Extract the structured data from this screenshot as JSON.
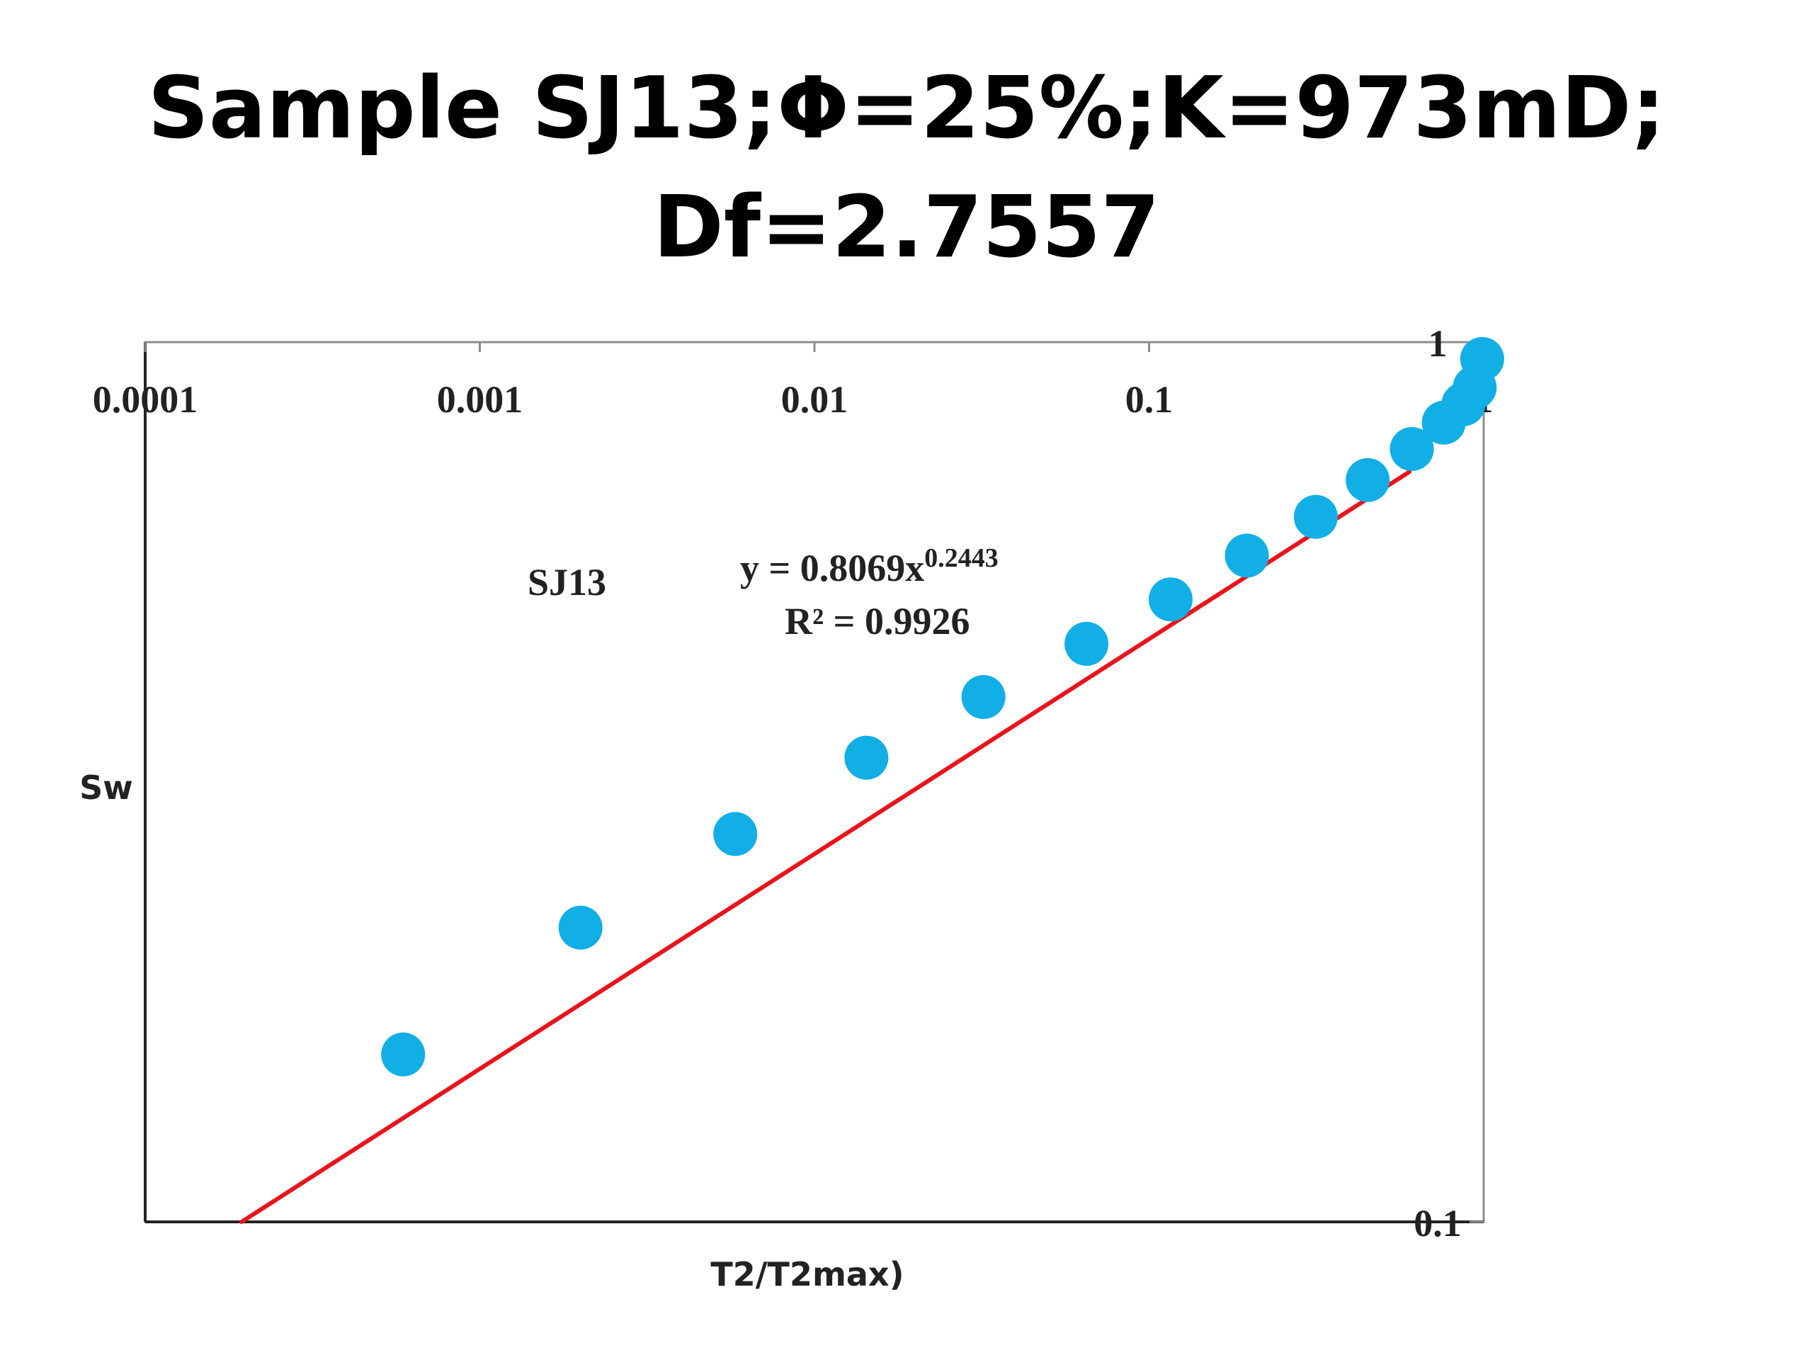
{
  "chart_data": {
    "type": "scatter",
    "title_line1": "Sample SJ13;Φ=25%;K=973mD;",
    "title_line2": "Df=2.7557",
    "xlabel": "T2/T2max)",
    "ylabel": "Sw",
    "x_scale": "log",
    "y_scale": "log",
    "xlim": [
      0.0001,
      1
    ],
    "ylim": [
      0.1,
      1
    ],
    "x_ticks": [
      "0.0001",
      "0.001",
      "0.01",
      "0.1",
      "1"
    ],
    "y_ticks": [
      "1",
      "0.1"
    ],
    "grid": false,
    "series": [
      {
        "name": "SJ13",
        "color": "#12aee6",
        "x": [
          0.00059,
          0.002,
          0.0058,
          0.0143,
          0.032,
          0.065,
          0.116,
          0.196,
          0.315,
          0.45,
          0.61,
          0.76,
          0.87,
          0.94,
          0.99
        ],
        "y": [
          0.155,
          0.216,
          0.276,
          0.337,
          0.395,
          0.454,
          0.51,
          0.572,
          0.633,
          0.697,
          0.756,
          0.81,
          0.85,
          0.888,
          0.957
        ]
      }
    ],
    "trendline": {
      "type": "power",
      "color": "#e8141c",
      "coefficient": 0.8069,
      "exponent": 0.2443,
      "equation_main": "y = 0.8069x",
      "equation_exp": "0.2443",
      "r2_label": "R² = 0.9926"
    },
    "annotation": "SJ13"
  }
}
